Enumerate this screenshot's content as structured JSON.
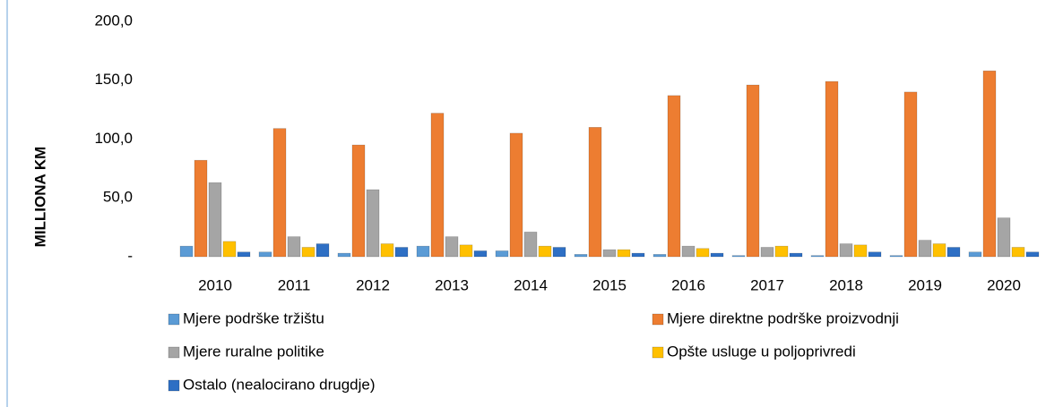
{
  "chart_data": {
    "type": "bar",
    "y_label": "MILLIONA KM",
    "categories": [
      "2010",
      "2011",
      "2012",
      "2013",
      "2014",
      "2015",
      "2016",
      "2017",
      "2018",
      "2019",
      "2020"
    ],
    "series": [
      {
        "name": "Mjere podrške tržištu",
        "color": "#5b9bd5",
        "values": [
          9,
          4,
          3,
          9,
          5,
          2,
          2,
          1,
          1,
          1,
          4
        ]
      },
      {
        "name": "Mjere direktne podrške proizvodnji",
        "color": "#ed7d31",
        "values": [
          82,
          109,
          95,
          122,
          105,
          110,
          137,
          146,
          149,
          140,
          158
        ]
      },
      {
        "name": "Mjere ruralne politike",
        "color": "#a5a5a5",
        "values": [
          63,
          17,
          57,
          17,
          21,
          6,
          9,
          8,
          11,
          14,
          33
        ]
      },
      {
        "name": "Opšte usluge u poljoprivredi",
        "color": "#ffc000",
        "values": [
          13,
          8,
          11,
          10,
          9,
          6,
          7,
          9,
          10,
          11,
          8
        ]
      },
      {
        "name": "Ostalo (nealocirano drugdje)",
        "color": "#2e6fc4",
        "values": [
          4,
          11,
          8,
          5,
          8,
          3,
          3,
          3,
          4,
          8,
          4
        ]
      }
    ],
    "ylim": [
      0,
      200
    ],
    "yticks": [
      {
        "value": 0,
        "label": "-"
      },
      {
        "value": 50,
        "label": "50,0"
      },
      {
        "value": 100,
        "label": "100,0"
      },
      {
        "value": 150,
        "label": "150,0"
      },
      {
        "value": 200,
        "label": "200,0"
      }
    ],
    "grid": false,
    "legend": "bottom"
  }
}
